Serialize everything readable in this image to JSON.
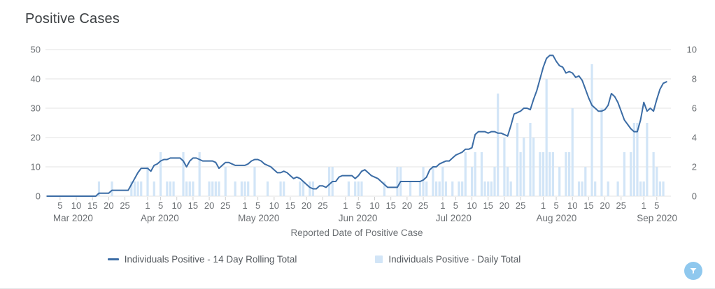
{
  "header": {
    "title": "Positive Cases"
  },
  "chart_data": {
    "type": "combo",
    "title": "Positive Cases",
    "xlabel": "Reported Date of Positive Case",
    "grid": true,
    "legend_position": "bottom",
    "x_start": "2020-03-01",
    "x_end": "2020-09-08",
    "months": [
      {
        "label": "Mar 2020",
        "days": 31,
        "ticks": [
          5,
          10,
          15,
          20,
          25
        ]
      },
      {
        "label": "Apr 2020",
        "days": 30,
        "ticks": [
          1,
          5,
          10,
          15,
          20,
          25
        ]
      },
      {
        "label": "May 2020",
        "days": 31,
        "ticks": [
          1,
          5,
          10,
          15,
          20,
          25
        ]
      },
      {
        "label": "Jun 2020",
        "days": 30,
        "ticks": [
          1,
          5,
          10,
          15,
          20,
          25
        ]
      },
      {
        "label": "Jul 2020",
        "days": 31,
        "ticks": [
          1,
          5,
          10,
          15,
          20,
          25
        ]
      },
      {
        "label": "Aug 2020",
        "days": 31,
        "ticks": [
          1,
          5,
          10,
          15,
          20,
          25
        ]
      },
      {
        "label": "Sep 2020",
        "days": 8,
        "ticks": [
          1,
          5
        ]
      }
    ],
    "y_left": {
      "max": 50,
      "ticks": [
        0,
        10,
        20,
        30,
        40,
        50
      ]
    },
    "y_right": {
      "max": 10,
      "ticks": [
        0,
        2,
        4,
        6,
        8,
        10
      ]
    },
    "series": [
      {
        "name": "Individuals Positive - 14 Day Rolling Total",
        "type": "line",
        "axis": "left",
        "color": "#3b6ca5",
        "values": [
          0,
          0,
          0,
          0,
          0,
          0,
          0,
          0,
          0,
          0,
          0,
          0,
          0,
          0,
          0,
          0,
          1,
          1,
          1,
          1,
          2,
          2,
          2,
          2,
          2,
          2,
          4,
          6,
          8,
          9.5,
          9.5,
          9.5,
          8.5,
          10.5,
          11,
          12,
          12.5,
          12.5,
          13,
          13,
          13,
          13,
          12,
          10,
          12,
          13,
          13,
          12.5,
          12,
          12,
          12,
          12,
          11.5,
          9.5,
          10.5,
          11.5,
          11.5,
          11,
          10.5,
          10.5,
          10.5,
          10.5,
          11,
          12,
          12.5,
          12.5,
          12,
          11,
          10.5,
          10,
          9,
          8,
          8,
          8.5,
          8,
          7,
          6,
          6.5,
          6,
          5,
          4,
          3,
          2.5,
          2.5,
          3.5,
          3.5,
          3,
          4,
          5,
          5,
          6.5,
          7,
          7,
          7,
          7,
          6,
          7,
          8.5,
          9,
          8,
          7,
          6.5,
          6,
          5,
          4,
          3,
          3,
          3,
          3,
          5,
          5,
          5,
          5,
          5,
          5,
          5,
          5.5,
          6.5,
          9,
          10,
          10,
          11,
          11.5,
          12,
          12,
          13,
          14,
          14.5,
          15,
          16,
          16,
          16.5,
          21,
          22,
          22,
          22,
          21.5,
          22,
          22,
          21.5,
          21.5,
          21,
          20.5,
          24,
          28,
          28.5,
          29,
          30,
          30,
          29.5,
          33,
          36,
          40,
          44,
          47,
          48,
          48,
          46,
          44.5,
          44,
          42,
          42.5,
          42,
          40.5,
          41,
          39.5,
          36.5,
          33.5,
          31,
          30,
          29,
          29,
          29.5,
          31,
          35,
          34,
          32,
          29,
          26,
          24.5,
          23,
          22,
          22,
          26,
          32,
          29,
          30,
          29,
          33,
          36.5,
          38.5,
          39
        ]
      },
      {
        "name": "Individuals Positive - Daily Total",
        "type": "bar",
        "axis": "right",
        "color": "#d2e5f7",
        "values": [
          0,
          0,
          0,
          0,
          0,
          0,
          0,
          0,
          0,
          0,
          0,
          0,
          0,
          0,
          0,
          0,
          1,
          0,
          0,
          0,
          1,
          0,
          0,
          0,
          0,
          0,
          1,
          1,
          1,
          1,
          0,
          2,
          0,
          1,
          0,
          3,
          0,
          1,
          1,
          1,
          0,
          0,
          3,
          1,
          1,
          1,
          0,
          3,
          0,
          0,
          1,
          1,
          1,
          1,
          0,
          2,
          0,
          0,
          1,
          0,
          1,
          1,
          1,
          0,
          2,
          0,
          0,
          0,
          1,
          0,
          0,
          0,
          1,
          1,
          0,
          0,
          0,
          0,
          1,
          1,
          0,
          1,
          1,
          0,
          0,
          0,
          0,
          2,
          2,
          0,
          0,
          0,
          0,
          1,
          0,
          1,
          1,
          1,
          0,
          0,
          0,
          0,
          0,
          0,
          1,
          0,
          0,
          0,
          2,
          2,
          0,
          0,
          1,
          0,
          0,
          1,
          2,
          1,
          0,
          2,
          1,
          1,
          2,
          1,
          0,
          1,
          0,
          1,
          1,
          3,
          0,
          2,
          3,
          0,
          3,
          1,
          1,
          1,
          2,
          7,
          0,
          4,
          2,
          1,
          0,
          5,
          3,
          4,
          0,
          5,
          4,
          0,
          3,
          3,
          8,
          3,
          3,
          0,
          2,
          0,
          3,
          3,
          6,
          0,
          1,
          1,
          2,
          0,
          9,
          1,
          0,
          6,
          0,
          1,
          0,
          0,
          1,
          0,
          3,
          0,
          3,
          5,
          5,
          1,
          1,
          5,
          0,
          3,
          2,
          1,
          1,
          0
        ]
      }
    ]
  },
  "controls": {
    "filter_button": {
      "icon": "filter-funnel-icon",
      "color": "#8fc8ee"
    }
  }
}
